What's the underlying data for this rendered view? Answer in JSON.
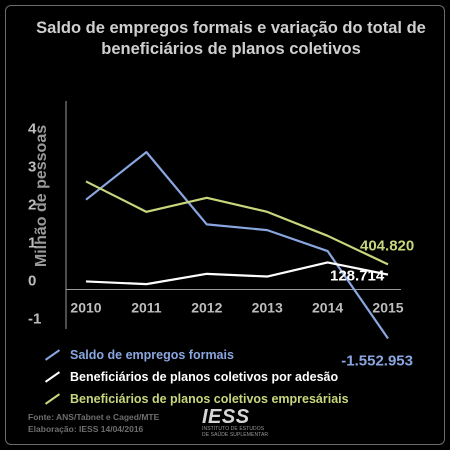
{
  "chart_data": {
    "type": "line",
    "title": "Saldo de empregos formais e variação do total de beneficiários de planos coletivos",
    "ylabel": "Milhão de pessoas",
    "xlabel": "",
    "x": [
      "2010",
      "2011",
      "2012",
      "2013",
      "2014",
      "2015"
    ],
    "ylim": [
      -1.3,
      4.3
    ],
    "yticks": [
      "-1",
      "0",
      "1",
      "2",
      "3",
      "4"
    ],
    "grid": false,
    "legend_position": "bottom",
    "series": [
      {
        "name": "Saldo de empregos formais",
        "color": "#8aa6e0",
        "values": [
          2.1,
          3.35,
          1.45,
          1.3,
          0.75,
          -1.55
        ]
      },
      {
        "name": "Beneficiários de planos coletivos por adesão",
        "color": "#ffffff",
        "values": [
          -0.05,
          -0.12,
          0.15,
          0.08,
          0.45,
          0.13
        ]
      },
      {
        "name": "Beneficiários de planos coletivos empresáriais",
        "color": "#c8d67c",
        "values": [
          2.58,
          1.78,
          2.15,
          1.78,
          1.15,
          0.4
        ]
      }
    ],
    "annotations": [
      {
        "text": "404.820",
        "color": "#c8d67c"
      },
      {
        "text": "128.714",
        "color": "#ffffff"
      },
      {
        "text": "-1.552.953",
        "color": "#8aa6e0"
      }
    ]
  },
  "footer": {
    "source_line1": "Fonte: ANS/Tabnet e Caged/MTE",
    "source_line2": "Elaboração: IESS 14/04/2016",
    "logo_text": "IESS",
    "logo_subtitle": "INSTITUTO DE ESTUDOS\nDE SAÚDE SUPLEMENTAR"
  }
}
